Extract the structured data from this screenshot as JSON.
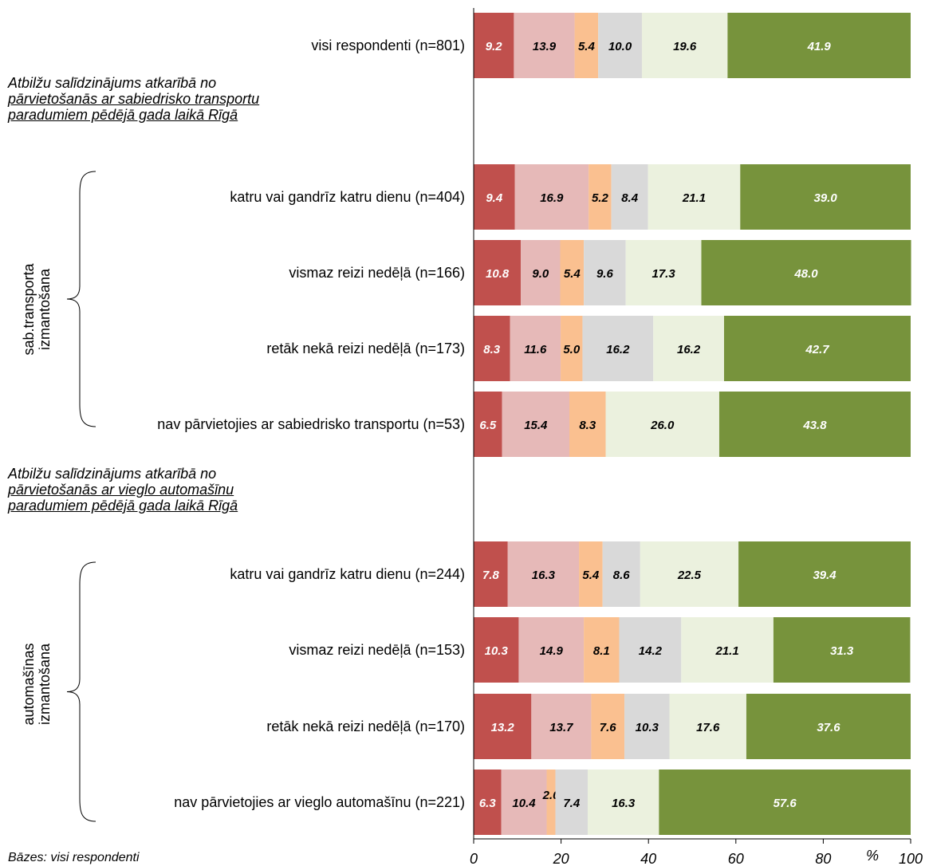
{
  "chart_data": {
    "type": "bar",
    "orientation": "horizontal",
    "stacked": true,
    "categories": [
      "visi respondenti (n=801)",
      "katru vai gandrīz katru dienu (n=404)",
      "vismaz reizi nedēļā (n=166)",
      "retāk nekā reizi nedēļā (n=173)",
      "nav pārvietojies ar sabiedrisko transportu (n=53)",
      "katru vai gandrīz katru dienu (n=244)",
      "vismaz reizi nedēļā (n=153)",
      "retāk nekā reizi nedēļā (n=170)",
      "nav pārvietojies ar vieglo automašīnu (n=221)"
    ],
    "series": [
      {
        "color": "#c0504d",
        "label_color": "#ffffff",
        "values": [
          9.2,
          9.4,
          10.8,
          8.3,
          6.5,
          7.8,
          10.3,
          13.2,
          6.3
        ]
      },
      {
        "color": "#e6b9b8",
        "label_color": "#000000",
        "values": [
          13.9,
          16.9,
          9.0,
          11.6,
          15.4,
          16.3,
          14.9,
          13.7,
          10.4
        ]
      },
      {
        "color": "#fac090",
        "label_color": "#000000",
        "values": [
          5.4,
          5.2,
          5.4,
          5.0,
          8.3,
          5.4,
          8.1,
          7.6,
          2.0
        ]
      },
      {
        "color": "#d9d9d9",
        "label_color": "#000000",
        "values": [
          10.0,
          8.4,
          9.6,
          16.2,
          0,
          8.6,
          14.2,
          10.3,
          7.4
        ]
      },
      {
        "color": "#ebf1de",
        "label_color": "#000000",
        "values": [
          19.6,
          21.1,
          17.3,
          16.2,
          26.0,
          22.5,
          21.1,
          17.6,
          16.3
        ]
      },
      {
        "color": "#77933c",
        "label_color": "#ffffff",
        "values": [
          41.9,
          39.0,
          48.0,
          42.7,
          43.8,
          39.4,
          31.3,
          37.6,
          57.6
        ]
      }
    ],
    "xlim": [
      0,
      100
    ],
    "xticks": [
      "0",
      "20",
      "40",
      "60",
      "80",
      "100"
    ],
    "x_unit": "%",
    "grid": false,
    "legend": "none"
  },
  "section_headings": [
    {
      "lines": [
        "Atbilžu salīdzinājums atkarībā no",
        "pārvietošanās ar sabiedrisko transportu",
        "paradumiem pēdējā gada laikā Rīgā"
      ]
    },
    {
      "lines": [
        "Atbilžu salīdzinājums atkarībā no",
        "pārvietošanās ar vieglo automašīnu",
        "paradumiem pēdējā gada laikā Rīgā"
      ]
    }
  ],
  "group_labels": [
    {
      "lines": [
        "sab.transporta",
        "izmantošana"
      ]
    },
    {
      "lines": [
        "automašīnas",
        "izmantošana"
      ]
    }
  ],
  "footnote": "Bāzes: visi respondenti"
}
